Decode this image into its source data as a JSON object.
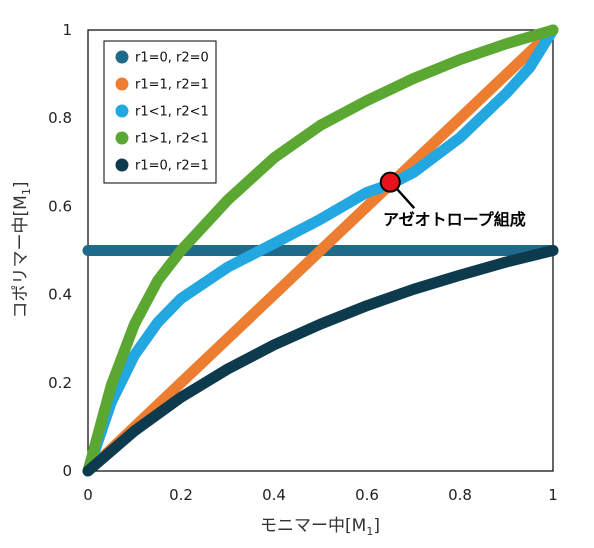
{
  "chart_data": {
    "type": "line",
    "xlabel_main": "モニマー中",
    "xlabel_sub": "1",
    "ylabel_main": "コポリマー中",
    "ylabel_sub": "1",
    "xlim": [
      0,
      1
    ],
    "ylim": [
      0,
      1
    ],
    "x_ticks": [
      "0",
      "0.2",
      "0.4",
      "0.6",
      "0.8",
      "1"
    ],
    "y_ticks": [
      "0",
      "0.2",
      "0.4",
      "0.6",
      "0.8",
      "1"
    ],
    "grid": false,
    "legend_position": "top-left",
    "series": [
      {
        "name": "r1=0, r2=0",
        "color": "#1f6a8a",
        "x": [
          0,
          0.1,
          0.2,
          0.3,
          0.4,
          0.5,
          0.6,
          0.7,
          0.8,
          0.9,
          1.0
        ],
        "y": [
          0.5,
          0.5,
          0.5,
          0.5,
          0.5,
          0.5,
          0.5,
          0.5,
          0.5,
          0.5,
          0.5
        ]
      },
      {
        "name": "r1=1, r2=1",
        "color": "#ed7d31",
        "x": [
          0,
          0.1,
          0.2,
          0.3,
          0.4,
          0.5,
          0.6,
          0.7,
          0.8,
          0.9,
          1.0
        ],
        "y": [
          0,
          0.1,
          0.2,
          0.3,
          0.4,
          0.5,
          0.6,
          0.7,
          0.8,
          0.9,
          1.0
        ]
      },
      {
        "name": "r1<1, r2<1",
        "color": "#22a7e0",
        "x": [
          0,
          0.05,
          0.1,
          0.15,
          0.2,
          0.3,
          0.4,
          0.5,
          0.6,
          0.65,
          0.7,
          0.8,
          0.9,
          0.95,
          1.0
        ],
        "y": [
          0,
          0.156,
          0.263,
          0.337,
          0.391,
          0.462,
          0.516,
          0.571,
          0.632,
          0.65,
          0.677,
          0.756,
          0.857,
          0.915,
          1.0
        ]
      },
      {
        "name": "r1>1, r2<1",
        "color": "#5aa832",
        "x": [
          0,
          0.05,
          0.1,
          0.15,
          0.2,
          0.3,
          0.4,
          0.5,
          0.6,
          0.7,
          0.8,
          0.9,
          1.0
        ],
        "y": [
          0,
          0.194,
          0.333,
          0.432,
          0.5,
          0.614,
          0.71,
          0.784,
          0.84,
          0.89,
          0.933,
          0.969,
          1.0
        ]
      },
      {
        "name": "r1=0, r2=1",
        "color": "#0e3a4e",
        "x": [
          0,
          0.1,
          0.2,
          0.3,
          0.4,
          0.5,
          0.6,
          0.7,
          0.8,
          0.9,
          1.0
        ],
        "y": [
          0,
          0.091,
          0.167,
          0.231,
          0.286,
          0.333,
          0.375,
          0.412,
          0.444,
          0.474,
          0.5
        ]
      }
    ],
    "annotation": {
      "text": "アゼオトロープ組成",
      "point": [
        0.65,
        0.655
      ],
      "marker_color": "#e8131a"
    }
  }
}
